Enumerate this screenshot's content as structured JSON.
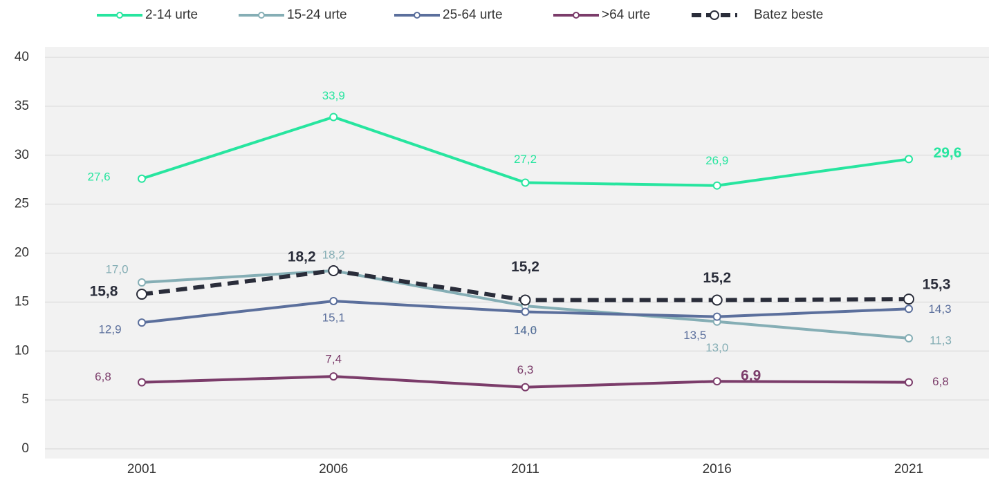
{
  "chart_data": {
    "type": "line",
    "categories": [
      "2001",
      "2006",
      "2011",
      "2016",
      "2021"
    ],
    "series": [
      {
        "name": "2-14 urte",
        "color": "#27e59f",
        "values": [
          27.6,
          33.9,
          27.2,
          26.9,
          29.6
        ],
        "value_labels": [
          "27,6",
          "33,9",
          "27,2",
          "26,9",
          "29,6"
        ]
      },
      {
        "name": "15-24 urte",
        "color": "#85aeb5",
        "values": [
          17.0,
          18.2,
          14.6,
          13.0,
          11.3
        ],
        "value_labels": [
          "17,0",
          "18,2",
          "14,6",
          "13,0",
          "11,3"
        ]
      },
      {
        "name": "25-64 urte",
        "color": "#5b6f9c",
        "values": [
          12.9,
          15.1,
          14.0,
          13.5,
          14.3
        ],
        "value_labels": [
          "12,9",
          "15,1",
          "14,0",
          "13,5",
          "14,3"
        ]
      },
      {
        "name": ">64 urte",
        "color": "#7b3c6a",
        "values": [
          6.8,
          7.4,
          6.3,
          6.9,
          6.8
        ],
        "value_labels": [
          "6,8",
          "7,4",
          "6,3",
          "6,9",
          "6,8"
        ]
      },
      {
        "name": "Batez beste",
        "color": "#2a2d3a",
        "dashed": true,
        "values": [
          15.8,
          18.2,
          15.2,
          15.2,
          15.3
        ],
        "value_labels": [
          "15,8",
          "18,2",
          "15,2",
          "15,2",
          "15,3"
        ]
      }
    ],
    "ylim": [
      0,
      40
    ],
    "yticks": [
      0,
      5,
      10,
      15,
      20,
      25,
      30,
      35,
      40
    ],
    "grid": true
  }
}
